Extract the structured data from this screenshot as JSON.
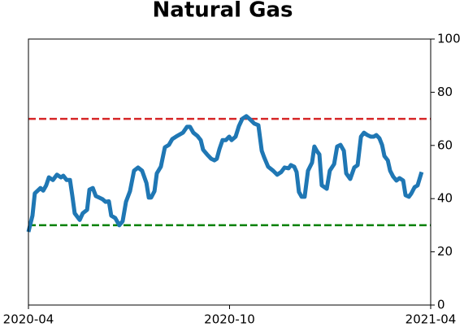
{
  "chart_data": {
    "type": "line",
    "title": "Natural Gas",
    "x": [
      0,
      0.12,
      0.19,
      0.36,
      0.44,
      0.53,
      0.61,
      0.73,
      0.85,
      0.97,
      1.04,
      1.14,
      1.24,
      1.31,
      1.38,
      1.53,
      1.62,
      1.75,
      1.82,
      1.92,
      2.01,
      2.11,
      2.21,
      2.3,
      2.4,
      2.47,
      2.59,
      2.71,
      2.81,
      2.91,
      3.03,
      3.15,
      3.27,
      3.39,
      3.52,
      3.59,
      3.66,
      3.76,
      3.83,
      3.95,
      4.07,
      4.19,
      4.29,
      4.44,
      4.61,
      4.73,
      4.82,
      4.92,
      5.04,
      5.14,
      5.21,
      5.33,
      5.45,
      5.55,
      5.62,
      5.7,
      5.79,
      5.89,
      5.99,
      6.06,
      6.18,
      6.28,
      6.38,
      6.5,
      6.62,
      6.74,
      6.86,
      6.96,
      7.03,
      7.15,
      7.3,
      7.42,
      7.54,
      7.64,
      7.76,
      7.83,
      7.93,
      8.0,
      8.07,
      8.15,
      8.24,
      8.34,
      8.46,
      8.53,
      8.61,
      8.68,
      8.75,
      8.9,
      8.99,
      9.12,
      9.21,
      9.31,
      9.41,
      9.48,
      9.6,
      9.72,
      9.82,
      9.92,
      10.01,
      10.11,
      10.21,
      10.3,
      10.38,
      10.47,
      10.55,
      10.62,
      10.72,
      10.79,
      10.88,
      10.98,
      11.07,
      11.18,
      11.25,
      11.35,
      11.42,
      11.52,
      11.61,
      11.73
    ],
    "series": [
      {
        "name": "Natural Gas",
        "color": "#1f77b4",
        "values": [
          27.5,
          33.6,
          42,
          44,
          43,
          45,
          48,
          47,
          49,
          48,
          48.6,
          47,
          47,
          41,
          34.5,
          32,
          34.5,
          35.8,
          43.4,
          44,
          41,
          40.4,
          39.8,
          38.8,
          39,
          33.6,
          32.7,
          30,
          31.5,
          38.8,
          42.8,
          50.5,
          51.7,
          50.5,
          45.9,
          40.4,
          40.4,
          42.8,
          49.5,
          52,
          59.3,
          60.2,
          62.4,
          63.6,
          64.8,
          67,
          67,
          64.8,
          63.6,
          62,
          58.4,
          56.6,
          55,
          54.4,
          55,
          58.7,
          62,
          62,
          63.3,
          62,
          63.3,
          67.3,
          70,
          71,
          69.7,
          68.2,
          67.6,
          58,
          55.6,
          52,
          50.5,
          49,
          50,
          51.7,
          51.4,
          52.6,
          52,
          50,
          42.5,
          40.7,
          40.7,
          50.5,
          53.5,
          59.6,
          57.8,
          56.6,
          45,
          43.7,
          50.5,
          53,
          59.6,
          60.2,
          58,
          49.5,
          47.4,
          51.7,
          52.6,
          63.3,
          64.8,
          63.9,
          63.3,
          63.3,
          63.9,
          62.7,
          60.2,
          56,
          54.4,
          50.5,
          48.3,
          46.8,
          47.7,
          46.8,
          41.3,
          40.7,
          41.9,
          44.3,
          45,
          50
        ]
      }
    ],
    "xlim": [
      0,
      12
    ],
    "xticks": [
      {
        "value": 0,
        "label": "2020-04"
      },
      {
        "value": 6,
        "label": "2020-10"
      },
      {
        "value": 12,
        "label": "2021-04"
      }
    ],
    "ylim": [
      0,
      100
    ],
    "yticks": [
      0,
      20,
      40,
      60,
      80,
      100
    ],
    "hlines": [
      {
        "value": 70,
        "color": "#d62728"
      },
      {
        "value": 30,
        "color": "#008000"
      }
    ]
  }
}
